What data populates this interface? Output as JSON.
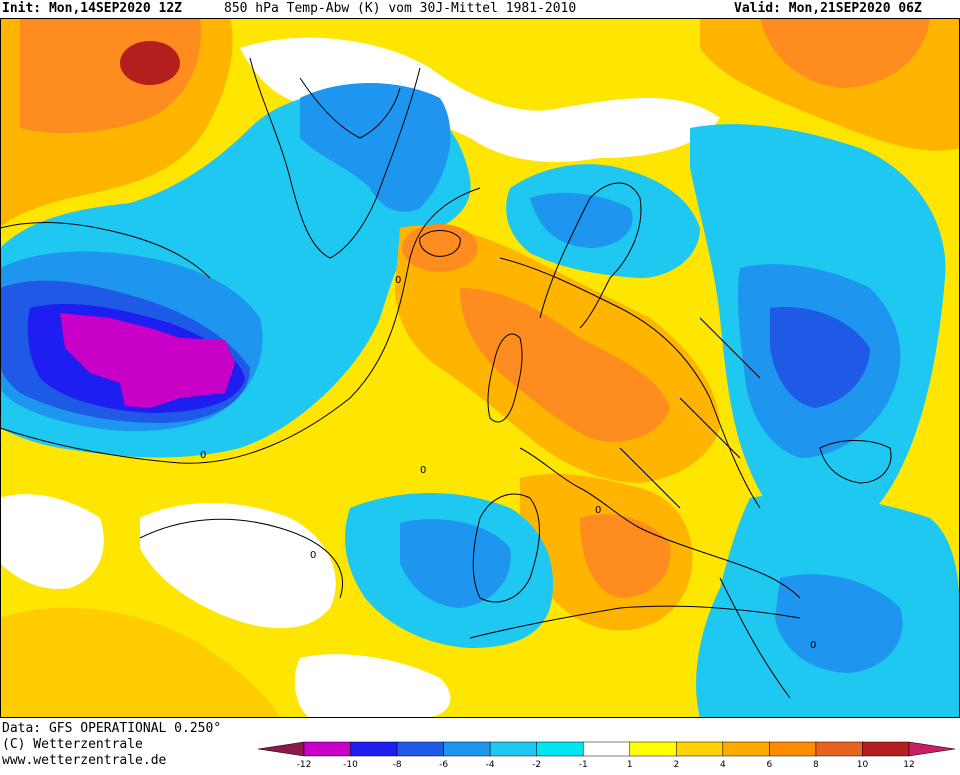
{
  "header": {
    "init": "Init: Mon,14SEP2020 12Z",
    "title": "850 hPa Temp-Abw (K) vom 30J-Mittel 1981-2010",
    "valid": "Valid: Mon,21SEP2020 06Z"
  },
  "footer": {
    "data_source": "Data: GFS OPERATIONAL 0.250°",
    "copyright": "(C) Wetterzentrale",
    "website": "www.wetterzentrale.de"
  },
  "map": {
    "contour_labels": [
      "0",
      "0",
      "0",
      "0",
      "0",
      "0"
    ]
  },
  "legend": {
    "ticks": [
      "-12",
      "-10",
      "-8",
      "-6",
      "-4",
      "-2",
      "-1",
      "1",
      "2",
      "4",
      "6",
      "8",
      "10",
      "12"
    ],
    "colors": [
      "#8b1a4a",
      "#c800c8",
      "#1e1ef0",
      "#1e5ae6",
      "#1e96f0",
      "#1ec8f0",
      "#00e6f0",
      "#ffffff",
      "#ffff00",
      "#ffd200",
      "#ffaa00",
      "#ff8c00",
      "#e6641e",
      "#b41e1e",
      "#c81e64"
    ]
  }
}
